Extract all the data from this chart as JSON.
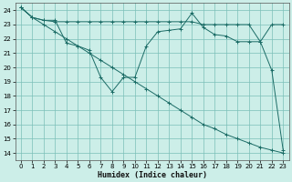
{
  "xlabel": "Humidex (Indice chaleur)",
  "bg_color": "#cceee8",
  "grid_color": "#7bbfb8",
  "line_color": "#1a6b65",
  "xlim": [
    -0.5,
    23.5
  ],
  "ylim": [
    13.5,
    24.5
  ],
  "yticks": [
    14,
    15,
    16,
    17,
    18,
    19,
    20,
    21,
    22,
    23,
    24
  ],
  "xticks": [
    0,
    1,
    2,
    3,
    4,
    5,
    6,
    7,
    8,
    9,
    10,
    11,
    12,
    13,
    14,
    15,
    16,
    17,
    18,
    19,
    20,
    21,
    22,
    23
  ],
  "series": [
    {
      "x": [
        0,
        1,
        2,
        3,
        4,
        5,
        6,
        7,
        8,
        9,
        10,
        11,
        12,
        13,
        14,
        15,
        16,
        17,
        18,
        19,
        20,
        21,
        22,
        23
      ],
      "y": [
        24.2,
        23.5,
        23.0,
        22.5,
        22.0,
        21.5,
        21.0,
        20.5,
        20.0,
        19.5,
        19.0,
        18.5,
        18.0,
        17.5,
        17.0,
        16.5,
        16.0,
        15.7,
        15.3,
        15.0,
        14.7,
        14.4,
        14.2,
        14.0
      ]
    },
    {
      "x": [
        0,
        1,
        2,
        3,
        4,
        5,
        6,
        7,
        8,
        9,
        10,
        11,
        12,
        13,
        14,
        15,
        16,
        17,
        18,
        19,
        20,
        21,
        22,
        23
      ],
      "y": [
        24.2,
        23.5,
        23.3,
        23.3,
        21.7,
        21.5,
        21.2,
        19.3,
        18.3,
        19.3,
        19.3,
        21.5,
        22.5,
        22.6,
        22.7,
        23.8,
        22.8,
        22.3,
        22.2,
        21.8,
        21.8,
        21.8,
        19.8,
        14.2
      ]
    },
    {
      "x": [
        0,
        1,
        2,
        3,
        4,
        5,
        6,
        7,
        8,
        9,
        10,
        11,
        12,
        13,
        14,
        15,
        16,
        17,
        18,
        19,
        20,
        21,
        22,
        23
      ],
      "y": [
        24.2,
        23.5,
        23.3,
        23.2,
        23.2,
        23.2,
        23.2,
        23.2,
        23.2,
        23.2,
        23.2,
        23.2,
        23.2,
        23.2,
        23.2,
        23.2,
        23.0,
        23.0,
        23.0,
        23.0,
        23.0,
        21.8,
        23.0,
        23.0
      ]
    }
  ]
}
